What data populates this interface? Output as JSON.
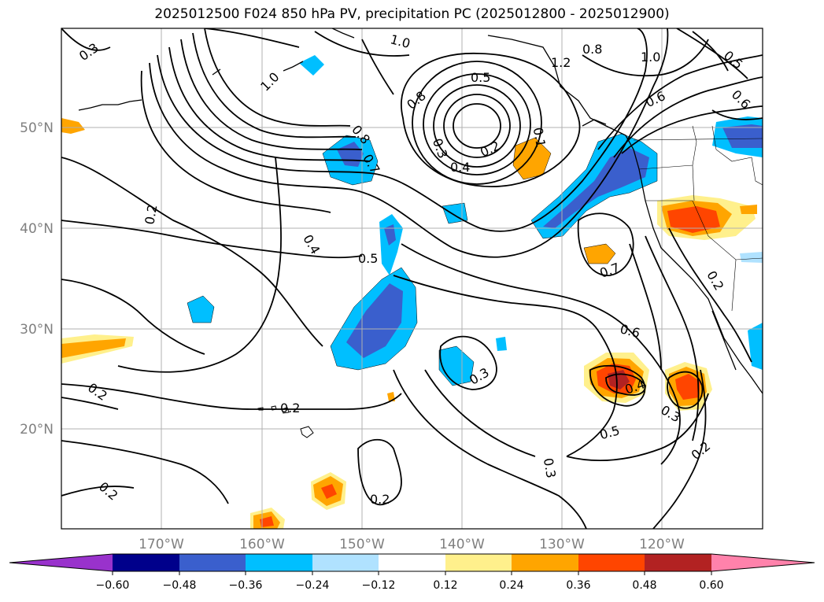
{
  "title": "2025012500 F024 850 hPa PV, precipitation PC (2025012800 - 2025012900)",
  "longitude_labels": [
    "170°W",
    "160°W",
    "150°W",
    "140°W",
    "130°W",
    "120°W"
  ],
  "latitude_labels": [
    "50°N",
    "40°N",
    "30°N",
    "20°N"
  ],
  "contour_labels": [
    "0.3",
    "1.0",
    "0.8",
    "0.6",
    "1.2",
    "0.5",
    "0.7",
    "0.2",
    "0.4",
    "0.1"
  ],
  "colorbar": {
    "ticks": [
      "−0.60",
      "−0.48",
      "−0.36",
      "−0.24",
      "−0.12",
      "0.12",
      "0.24",
      "0.36",
      "0.48",
      "0.60"
    ],
    "colors": [
      "#9932cc",
      "#00008b",
      "#3a5fcd",
      "#00bfff",
      "#b0e2ff",
      "#ffffff",
      "#fff08c",
      "#ffa500",
      "#ff4500",
      "#b22222",
      "#ff82ab"
    ]
  }
}
